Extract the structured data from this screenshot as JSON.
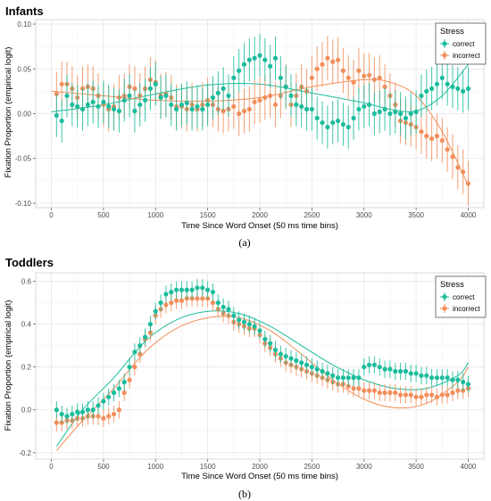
{
  "figure": {
    "sublabels": [
      "(a)",
      "(b)"
    ]
  },
  "chart_data": [
    {
      "type": "scatter",
      "title": "Infants",
      "xlabel": "Time Since Word Onset  (50 ms time bins)",
      "ylabel": "Fixation Proportion (empirical logit)",
      "xlim": [
        -150,
        4150
      ],
      "ylim": [
        -0.105,
        0.105
      ],
      "xticks": [
        0,
        500,
        1000,
        1500,
        2000,
        2500,
        3000,
        3500,
        4000
      ],
      "yticks": [
        -0.1,
        -0.05,
        0.0,
        0.05,
        0.1
      ],
      "ytick_labels": [
        "-0.10",
        "-0.05",
        "0.00",
        "0.05",
        "0.10"
      ],
      "grid": true,
      "legend": {
        "title": "Stress",
        "position": "top-right",
        "entries": [
          "correct",
          "incorrect"
        ]
      },
      "error_half_width": {
        "correct": 0.024,
        "incorrect": 0.025
      },
      "x": [
        50,
        100,
        150,
        200,
        250,
        300,
        350,
        400,
        450,
        500,
        550,
        600,
        650,
        700,
        750,
        800,
        850,
        900,
        950,
        1000,
        1050,
        1100,
        1150,
        1200,
        1250,
        1300,
        1350,
        1400,
        1450,
        1500,
        1550,
        1600,
        1650,
        1700,
        1750,
        1800,
        1850,
        1900,
        1950,
        2000,
        2050,
        2100,
        2150,
        2200,
        2250,
        2300,
        2350,
        2400,
        2450,
        2500,
        2550,
        2600,
        2650,
        2700,
        2750,
        2800,
        2850,
        2900,
        2950,
        3000,
        3050,
        3100,
        3150,
        3200,
        3250,
        3300,
        3350,
        3400,
        3450,
        3500,
        3550,
        3600,
        3650,
        3700,
        3750,
        3800,
        3850,
        3900,
        3950,
        4000
      ],
      "series": [
        {
          "name": "correct",
          "color": "#1abc9c",
          "values": [
            -0.002,
            -0.008,
            0.02,
            0.01,
            0.008,
            0.005,
            0.01,
            0.013,
            0.008,
            0.013,
            0.008,
            0.005,
            0.003,
            0.015,
            0.02,
            0.003,
            0.01,
            0.015,
            0.028,
            0.033,
            0.018,
            0.02,
            0.01,
            0.005,
            0.01,
            0.012,
            0.005,
            0.008,
            0.005,
            0.01,
            0.018,
            0.023,
            0.028,
            0.02,
            0.04,
            0.048,
            0.055,
            0.06,
            0.062,
            0.065,
            0.06,
            0.053,
            0.062,
            0.04,
            0.03,
            0.02,
            0.01,
            0.008,
            0.005,
            0.005,
            -0.005,
            -0.01,
            -0.015,
            -0.01,
            -0.008,
            -0.012,
            -0.015,
            -0.005,
            0.005,
            0.008,
            0.01,
            0.0,
            0.002,
            0.005,
            0.0,
            0.002,
            0.0,
            -0.005,
            0.0,
            0.002,
            0.02,
            0.025,
            0.028,
            0.033,
            0.04,
            0.033,
            0.03,
            0.028,
            0.025,
            0.028
          ]
        },
        {
          "name": "incorrect",
          "color": "#f28e5a",
          "values": [
            0.022,
            0.033,
            0.033,
            0.028,
            0.018,
            0.028,
            0.03,
            0.028,
            0.02,
            0.01,
            0.005,
            0.008,
            0.018,
            0.02,
            0.03,
            0.028,
            0.02,
            0.028,
            0.038,
            0.035,
            0.02,
            0.022,
            0.018,
            0.008,
            0.008,
            0.005,
            0.01,
            0.005,
            0.01,
            0.015,
            0.01,
            0.005,
            0.003,
            0.005,
            0.008,
            0.0,
            0.003,
            0.005,
            0.013,
            0.015,
            0.018,
            0.02,
            0.01,
            0.02,
            0.03,
            0.01,
            0.02,
            0.03,
            0.025,
            0.04,
            0.05,
            0.055,
            0.062,
            0.058,
            0.06,
            0.048,
            0.04,
            0.035,
            0.048,
            0.042,
            0.043,
            0.038,
            0.04,
            0.03,
            0.02,
            0.01,
            -0.008,
            -0.01,
            -0.012,
            -0.015,
            -0.02,
            -0.025,
            -0.028,
            -0.025,
            -0.03,
            -0.04,
            -0.048,
            -0.06,
            -0.065,
            -0.078
          ]
        }
      ],
      "fit_lines": [
        {
          "name": "correct",
          "color": "#1abc9c",
          "x": [
            0,
            500,
            1000,
            1500,
            2000,
            2500,
            3000,
            3250,
            3500,
            3750,
            4000
          ],
          "values": [
            0.002,
            0.01,
            0.022,
            0.032,
            0.033,
            0.023,
            0.012,
            0.005,
            0.003,
            0.02,
            0.055
          ]
        },
        {
          "name": "incorrect",
          "color": "#f28e5a",
          "x": [
            0,
            500,
            1000,
            1500,
            2000,
            2500,
            3000,
            3250,
            3500,
            3750,
            4000
          ],
          "values": [
            0.025,
            0.02,
            0.015,
            0.014,
            0.018,
            0.03,
            0.038,
            0.035,
            0.02,
            -0.02,
            -0.08
          ]
        }
      ]
    },
    {
      "type": "scatter",
      "title": "Toddlers",
      "xlabel": "Time Since Word Onset  (50 ms time bins)",
      "ylabel": "Fixation Proportion (empirical logit)",
      "xlim": [
        -150,
        4150
      ],
      "ylim": [
        -0.23,
        0.64
      ],
      "xticks": [
        0,
        500,
        1000,
        1500,
        2000,
        2500,
        3000,
        3500,
        4000
      ],
      "yticks": [
        -0.2,
        0.0,
        0.2,
        0.4,
        0.6
      ],
      "ytick_labels": [
        "-0.2",
        "0.0",
        "0.2",
        "0.4",
        "0.6"
      ],
      "grid": true,
      "legend": {
        "title": "Stress",
        "position": "top-right",
        "entries": [
          "correct",
          "incorrect"
        ]
      },
      "error_half_width": {
        "correct": 0.04,
        "incorrect": 0.04
      },
      "x": [
        50,
        100,
        150,
        200,
        250,
        300,
        350,
        400,
        450,
        500,
        550,
        600,
        650,
        700,
        750,
        800,
        850,
        900,
        950,
        1000,
        1050,
        1100,
        1150,
        1200,
        1250,
        1300,
        1350,
        1400,
        1450,
        1500,
        1550,
        1600,
        1650,
        1700,
        1750,
        1800,
        1850,
        1900,
        1950,
        2000,
        2050,
        2100,
        2150,
        2200,
        2250,
        2300,
        2350,
        2400,
        2450,
        2500,
        2550,
        2600,
        2650,
        2700,
        2750,
        2800,
        2850,
        2900,
        2950,
        3000,
        3050,
        3100,
        3150,
        3200,
        3250,
        3300,
        3350,
        3400,
        3450,
        3500,
        3550,
        3600,
        3650,
        3700,
        3750,
        3800,
        3850,
        3900,
        3950,
        4000
      ],
      "series": [
        {
          "name": "correct",
          "color": "#1abc9c",
          "values": [
            0.0,
            -0.02,
            -0.03,
            -0.02,
            -0.01,
            -0.01,
            0.0,
            0.0,
            0.02,
            0.04,
            0.06,
            0.08,
            0.1,
            0.13,
            0.2,
            0.27,
            0.3,
            0.34,
            0.4,
            0.46,
            0.5,
            0.54,
            0.55,
            0.56,
            0.56,
            0.56,
            0.56,
            0.57,
            0.57,
            0.56,
            0.55,
            0.5,
            0.48,
            0.47,
            0.44,
            0.42,
            0.41,
            0.4,
            0.39,
            0.37,
            0.33,
            0.31,
            0.28,
            0.26,
            0.25,
            0.24,
            0.23,
            0.22,
            0.21,
            0.2,
            0.19,
            0.18,
            0.17,
            0.16,
            0.15,
            0.15,
            0.15,
            0.15,
            0.15,
            0.2,
            0.21,
            0.21,
            0.2,
            0.19,
            0.19,
            0.18,
            0.18,
            0.18,
            0.17,
            0.17,
            0.16,
            0.16,
            0.15,
            0.15,
            0.15,
            0.15,
            0.14,
            0.14,
            0.13,
            0.12
          ]
        },
        {
          "name": "incorrect",
          "color": "#f28e5a",
          "values": [
            -0.06,
            -0.06,
            -0.05,
            -0.05,
            -0.04,
            -0.04,
            -0.03,
            -0.03,
            -0.03,
            -0.04,
            -0.03,
            -0.02,
            0.0,
            0.08,
            0.14,
            0.2,
            0.26,
            0.33,
            0.36,
            0.44,
            0.47,
            0.49,
            0.5,
            0.51,
            0.51,
            0.52,
            0.52,
            0.52,
            0.52,
            0.52,
            0.5,
            0.47,
            0.45,
            0.44,
            0.41,
            0.4,
            0.39,
            0.38,
            0.38,
            0.35,
            0.31,
            0.29,
            0.26,
            0.24,
            0.22,
            0.21,
            0.2,
            0.19,
            0.18,
            0.17,
            0.16,
            0.15,
            0.14,
            0.13,
            0.12,
            0.12,
            0.11,
            0.1,
            0.1,
            0.09,
            0.09,
            0.09,
            0.08,
            0.08,
            0.08,
            0.08,
            0.07,
            0.07,
            0.07,
            0.06,
            0.06,
            0.07,
            0.07,
            0.06,
            0.07,
            0.07,
            0.08,
            0.09,
            0.09,
            0.1
          ]
        }
      ],
      "fit_lines": [
        {
          "name": "correct",
          "color": "#1abc9c",
          "x": [
            50,
            300,
            600,
            900,
            1200,
            1500,
            1800,
            2100,
            2400,
            2700,
            3000,
            3300,
            3600,
            3900,
            4000
          ],
          "values": [
            -0.17,
            0.0,
            0.15,
            0.32,
            0.42,
            0.46,
            0.45,
            0.39,
            0.3,
            0.21,
            0.14,
            0.1,
            0.1,
            0.16,
            0.22
          ]
        },
        {
          "name": "incorrect",
          "color": "#f28e5a",
          "x": [
            50,
            300,
            600,
            900,
            1200,
            1500,
            1800,
            2100,
            2400,
            2700,
            3000,
            3300,
            3600,
            3900,
            4000
          ],
          "values": [
            -0.19,
            -0.05,
            0.1,
            0.27,
            0.38,
            0.43,
            0.43,
            0.37,
            0.26,
            0.14,
            0.05,
            0.01,
            0.03,
            0.13,
            0.2
          ]
        }
      ]
    }
  ]
}
